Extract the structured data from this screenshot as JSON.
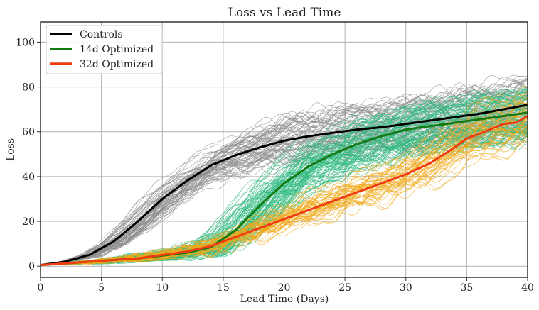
{
  "chart_data": {
    "type": "line",
    "title": "Loss vs Lead Time",
    "xlabel": "Lead Time (Days)",
    "ylabel": "Loss",
    "xlim": [
      0,
      40
    ],
    "ylim": [
      -5,
      109
    ],
    "xticks": [
      "0",
      "5",
      "10",
      "15",
      "20",
      "25",
      "30",
      "35",
      "40"
    ],
    "yticks": [
      "0",
      "20",
      "40",
      "60",
      "80",
      "100"
    ],
    "grid": true,
    "legend_position": "top-left",
    "series": [
      {
        "name": "Controls",
        "color": "#000000",
        "ensemble_color": "#8c8c8c",
        "x": [
          0,
          2,
          4,
          6,
          8,
          10,
          12,
          14,
          16,
          18,
          20,
          22,
          24,
          26,
          28,
          30,
          32,
          34,
          36,
          38,
          40
        ],
        "y": [
          0.5,
          2,
          5,
          11,
          20,
          30,
          38,
          45,
          49.5,
          53,
          56,
          58,
          59.5,
          61,
          62,
          63.5,
          65,
          66.5,
          68,
          70,
          72
        ]
      },
      {
        "name": "14d Optimized",
        "color": "#137a13",
        "ensemble_color": "#2dba7f",
        "x": [
          0,
          4,
          8,
          12,
          14,
          16,
          18,
          20,
          22,
          24,
          26,
          28,
          30,
          32,
          34,
          36,
          38,
          40
        ],
        "y": [
          0.5,
          2,
          3.5,
          6,
          8.5,
          16,
          27,
          37,
          44.5,
          50,
          54.5,
          58,
          61,
          62.5,
          64,
          65.5,
          67,
          68.5
        ]
      },
      {
        "name": "32d Optimized",
        "color": "#f03c0f",
        "ensemble_color": "#f0a818",
        "x": [
          0,
          4,
          8,
          10,
          12,
          14,
          16,
          18,
          20,
          22,
          24,
          26,
          28,
          30,
          32,
          34,
          35,
          36,
          38,
          39,
          40
        ],
        "y": [
          0.5,
          2,
          3.5,
          5,
          6.5,
          9,
          13,
          17,
          21,
          25,
          29,
          33,
          37,
          41,
          46,
          53,
          57,
          59,
          63.5,
          64,
          67
        ]
      }
    ]
  }
}
